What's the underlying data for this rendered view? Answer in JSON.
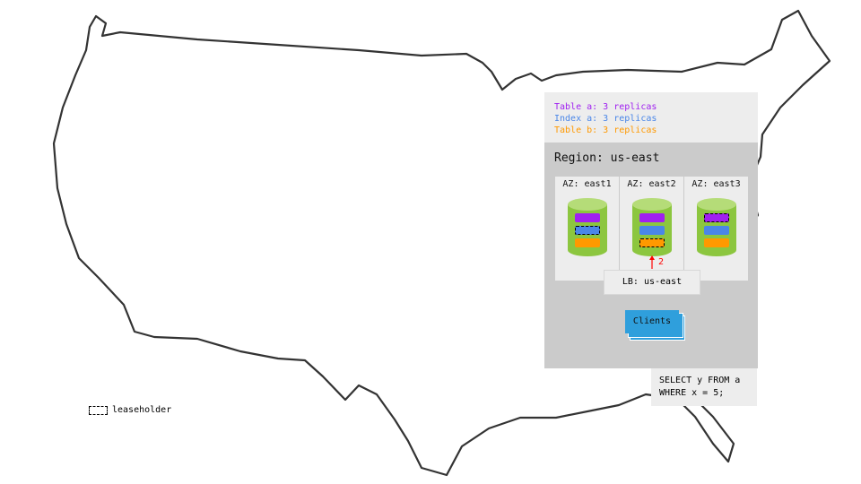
{
  "legend": {
    "items": [
      {
        "label": "Table a: 3 replicas",
        "color": "#a020f0"
      },
      {
        "label": "Index a: 3 replicas",
        "color": "#4a86e8"
      },
      {
        "label": "Table b: 3 replicas",
        "color": "#ff9900"
      }
    ]
  },
  "region": {
    "title": "Region: us-east",
    "azs": [
      {
        "label": "AZ: east1",
        "leaseholder": "index"
      },
      {
        "label": "AZ: east2",
        "leaseholder": "tableb"
      },
      {
        "label": "AZ: east3",
        "leaseholder": "tablea"
      }
    ],
    "arrow_label": "2",
    "lb_label": "LB: us-east",
    "clients_label": "Clients"
  },
  "query": {
    "line1": "SELECT y FROM a",
    "line2": "WHERE x = 5;"
  },
  "leaseholder_legend": "leaseholder",
  "colors": {
    "node_green": "#8cc63f",
    "clients_blue": "#2f9fdc",
    "arrow_red": "#ff0000"
  }
}
